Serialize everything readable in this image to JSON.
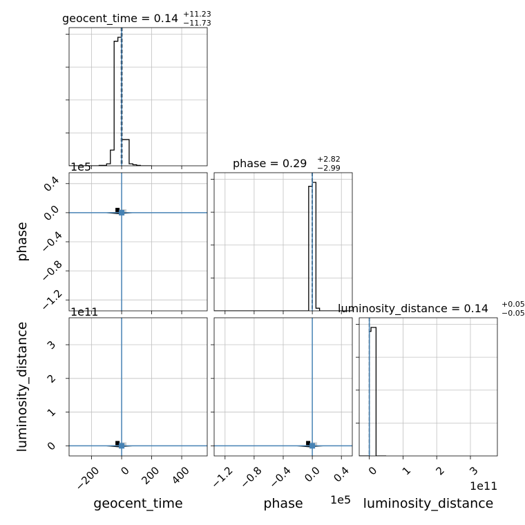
{
  "chart_data": {
    "type": "corner",
    "parameters": [
      {
        "name": "geocent_time",
        "xlabel": "geocent_time",
        "title_name": "geocent_time = 0.14",
        "title_upper": "+11.23",
        "title_lower": "−11.73",
        "median": 0.14,
        "plus": 11.23,
        "minus": 11.73,
        "range": [
          -350,
          570
        ],
        "ticks": [
          -200,
          0,
          200,
          400
        ],
        "tick_labels": [
          "−200",
          "0",
          "200",
          "400"
        ],
        "offset_text": "",
        "axis_label": "geocent_time"
      },
      {
        "name": "phase",
        "xlabel": "phase",
        "title_name": "phase = 0.29",
        "title_upper": "+2.82",
        "title_lower": "−2.99",
        "median": 0.29,
        "plus": 2.82,
        "minus": 2.99,
        "range": [
          -1.35,
          0.55
        ],
        "ticks": [
          -1.2,
          -0.8,
          -0.4,
          0.0,
          0.4
        ],
        "tick_labels": [
          "−1.2",
          "−0.8",
          "−0.4",
          "0.0",
          "0.4"
        ],
        "offset_text": "1e5",
        "axis_label": "phase"
      },
      {
        "name": "luminosity_distance",
        "xlabel": "luminosity_distance",
        "title_name": "luminosity_distance = 0.14",
        "title_upper": "+0.05",
        "title_lower": "−0.05",
        "median": 0.14,
        "plus": 0.05,
        "minus": 0.05,
        "range": [
          -0.3,
          3.8
        ],
        "ticks": [
          0,
          1,
          2,
          3
        ],
        "tick_labels": [
          "0",
          "1",
          "2",
          "3"
        ],
        "offset_text": "1e11",
        "axis_label": "luminosity_distance"
      }
    ],
    "truth": [
      0,
      0,
      0
    ],
    "truth_color": "#4682b4",
    "hist_color": "#000000",
    "histograms": [
      {
        "edges": [
          -400,
          -350,
          -300,
          -250,
          -200,
          -150,
          -100,
          -75,
          -50,
          -25,
          0,
          25,
          50,
          75,
          100,
          125,
          150,
          200
        ],
        "counts": [
          0,
          0,
          0,
          0,
          0,
          0.3,
          1.5,
          12,
          95,
          98,
          20,
          20,
          1.5,
          0.8,
          0.3,
          0,
          0
        ]
      },
      {
        "edges": [
          -1.4,
          -1.3,
          -1.2,
          -1.1,
          -1.0,
          -0.9,
          -0.8,
          -0.7,
          -0.6,
          -0.5,
          -0.4,
          -0.3,
          -0.2,
          -0.1,
          -0.05,
          0.0,
          0.05,
          0.1,
          0.2,
          0.3,
          0.4,
          0.5,
          0.6
        ],
        "counts": [
          0,
          0,
          0,
          0,
          0,
          0,
          0,
          0,
          0,
          0,
          0,
          0,
          0,
          0,
          95,
          98,
          2,
          0,
          0,
          0,
          0,
          0
        ]
      },
      {
        "edges": [
          -0.5,
          -0.4,
          -0.3,
          -0.2,
          -0.1,
          0.0,
          0.05,
          0.1,
          0.15,
          0.2,
          0.3,
          0.4,
          0.5
        ],
        "counts": [
          0,
          0,
          0,
          0,
          0,
          95,
          98,
          98,
          98,
          0,
          0,
          0
        ]
      }
    ],
    "grid": true
  }
}
